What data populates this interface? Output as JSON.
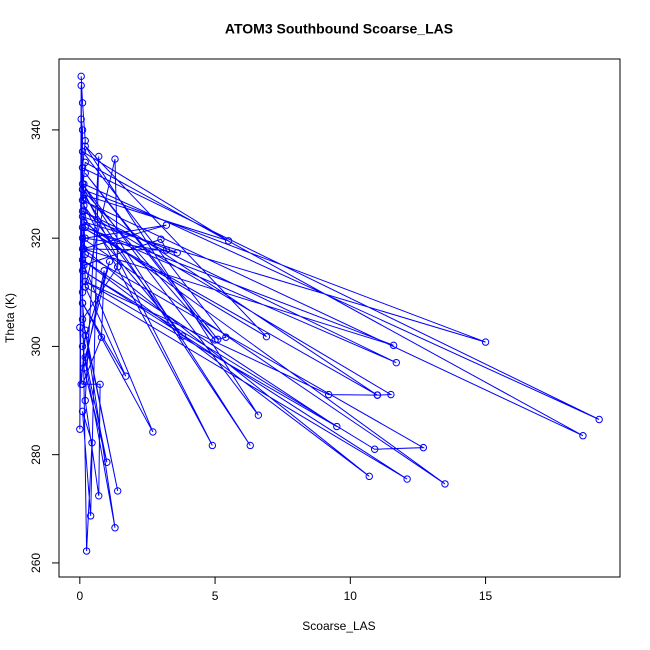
{
  "chart_data": {
    "type": "scatter",
    "title": "ATOM3 Southbound Scoarse_LAS",
    "x_label": "Scoarse_LAS",
    "y_label": "Theta (K)",
    "color": "#0000ff",
    "connect": true,
    "xlim": [
      -0.77,
      19.97
    ],
    "ylim": [
      257.4,
      353.1
    ],
    "xticks": [
      0,
      5,
      10,
      15
    ],
    "yticks": [
      260,
      280,
      300,
      320,
      340
    ],
    "x": [
      0.05,
      0.1,
      0.2,
      0.1,
      19.2,
      0.15,
      0.1,
      18.6,
      0.2,
      0.1,
      15.0,
      0.15,
      13.5,
      0.1,
      0.2,
      12.7,
      10.9,
      0.1,
      12.1,
      0.2,
      0.15,
      11.0,
      11.5,
      0.1,
      11.7,
      0.2,
      11.6,
      0.15,
      10.7,
      0.1,
      9.5,
      0.2,
      9.2,
      11.0,
      0.1,
      6.9,
      0.2,
      6.6,
      0.1,
      6.3,
      0.15,
      5.5,
      0.1,
      5.4,
      5.1,
      0.2,
      5.0,
      0.1,
      4.9,
      0.15,
      3.8,
      0.1,
      3.6,
      0.2,
      3.2,
      0.1,
      3.2,
      3.0,
      0.15,
      2.7,
      0.1,
      1.7,
      0.2,
      1.3,
      1.4,
      0.1,
      1.4,
      0.2,
      1.3,
      0.1,
      1.1,
      0.2,
      1.0,
      0.15,
      0.9,
      0.8,
      0.1,
      0.75,
      0.7,
      0.2,
      0.7,
      0.4,
      0.1,
      0.45,
      0.25,
      0.1,
      0.05,
      0.0,
      0.1,
      0.05,
      0.15,
      0.1,
      0.2,
      0.05,
      0.0
    ],
    "y": [
      349.9,
      345,
      338,
      333,
      286.5,
      330,
      327,
      283.5,
      334,
      329,
      300.8,
      323,
      274.6,
      320,
      317,
      281.3,
      281,
      314,
      275.5,
      311,
      327,
      291,
      291.1,
      325,
      297,
      322,
      300.2,
      318,
      276,
      316,
      285.2,
      312,
      291.1,
      291,
      322,
      301.8,
      337,
      287.3,
      330,
      281.7,
      328,
      319.5,
      336,
      301.7,
      301.3,
      332,
      301.2,
      329,
      281.7,
      326,
      301.9,
      324,
      317.3,
      320,
      322.4,
      318,
      317.8,
      319.8,
      315,
      284.2,
      308,
      294.5,
      311,
      334.6,
      314.7,
      305,
      273.3,
      303,
      266.5,
      300,
      315.7,
      298,
      278.6,
      296,
      314,
      301.7,
      293,
      293,
      272.4,
      290,
      335.1,
      268.7,
      288,
      282.2,
      262.2,
      310,
      348.2,
      284.7,
      340,
      342,
      325,
      308,
      302,
      293,
      303.5
    ]
  }
}
